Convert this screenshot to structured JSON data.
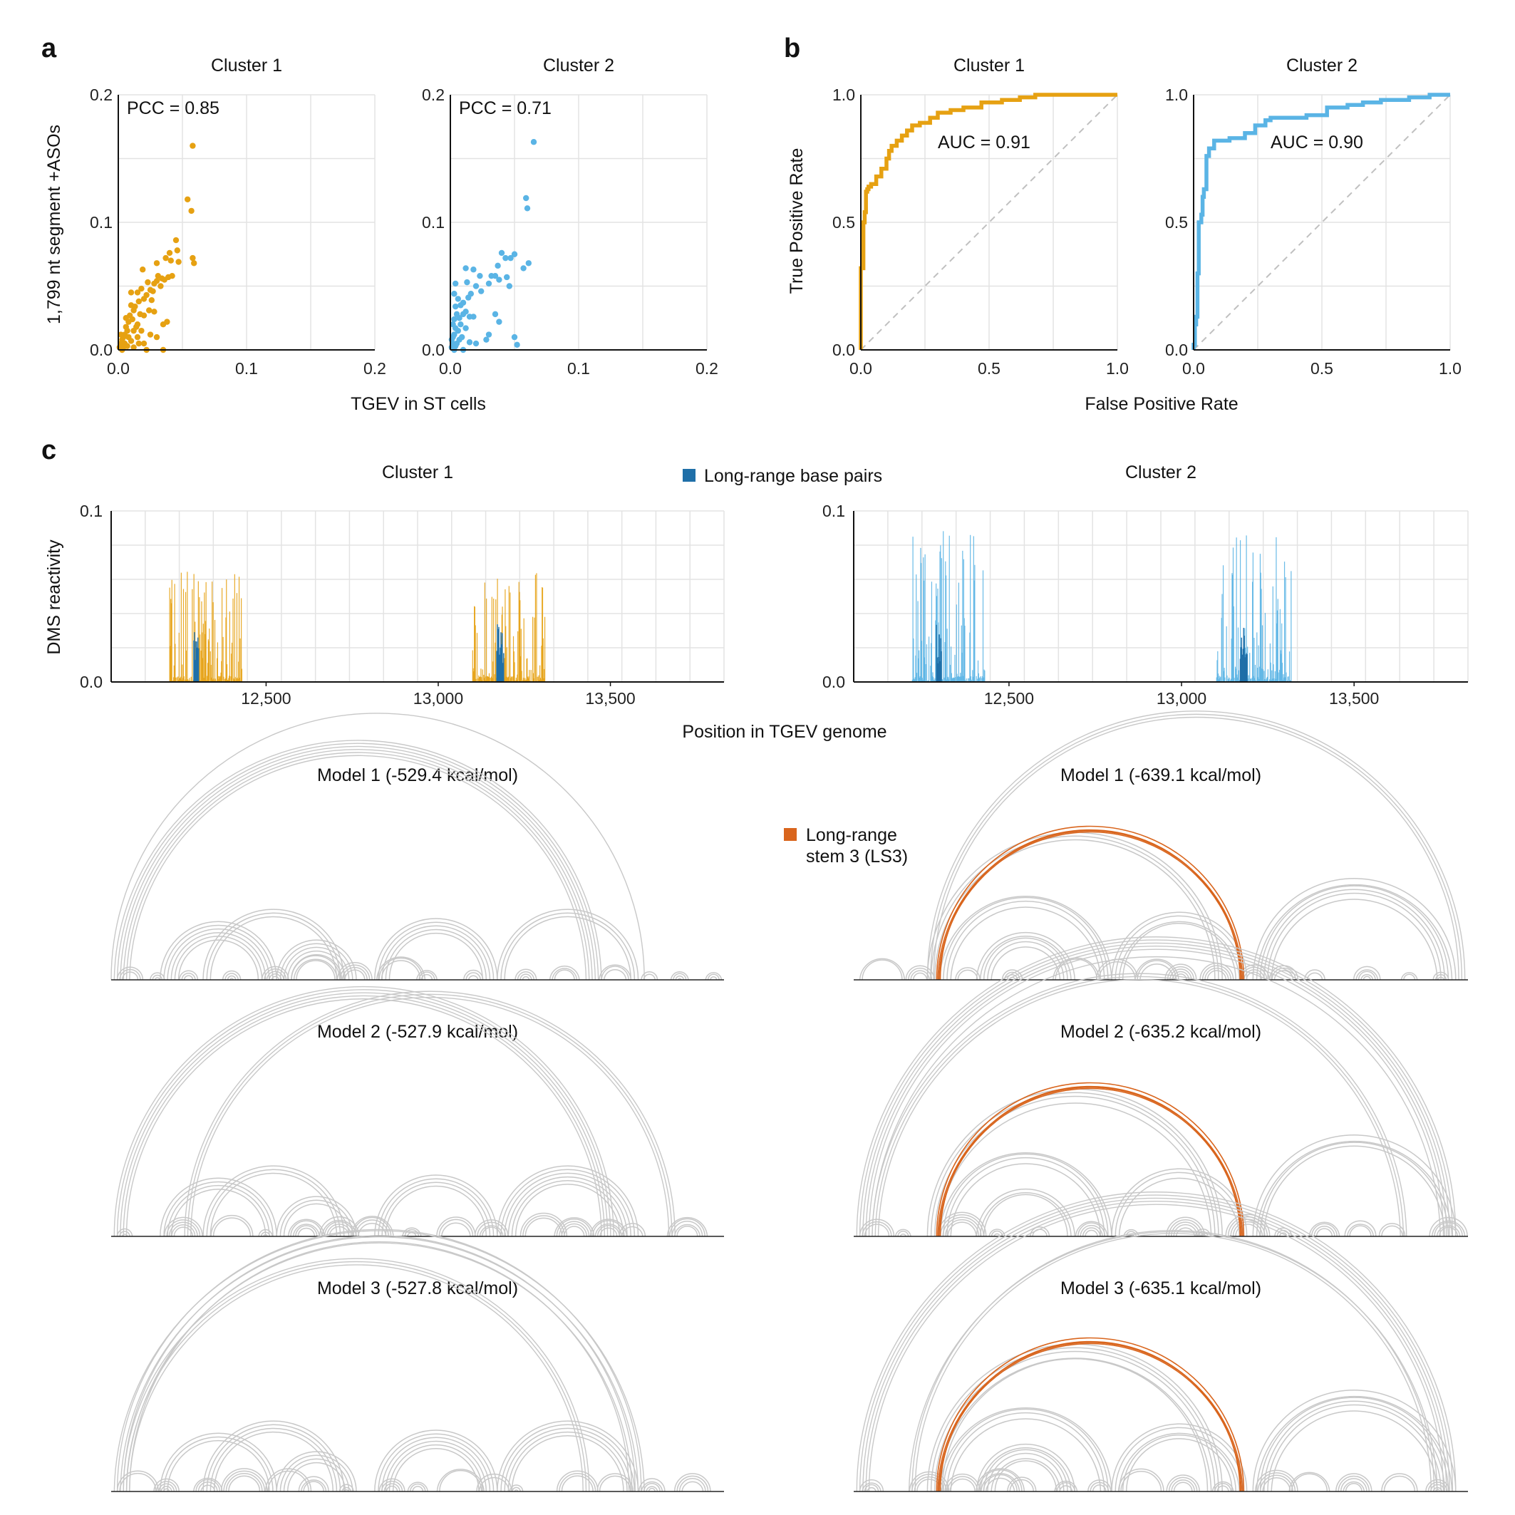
{
  "panels": {
    "a": {
      "label": "a",
      "xlabel": "TGEV in ST cells",
      "ylabel": "1,799 nt segment +ASOs"
    },
    "b": {
      "label": "b",
      "xlabel": "False Positive Rate",
      "ylabel": "True Positive Rate"
    },
    "c": {
      "label": "c",
      "xlabel": "Position in TGEV genome",
      "ylabel": "DMS reactivity",
      "legend_top": "Long-range base pairs",
      "legend_arc": [
        "Long-range",
        "stem 3 (LS3)"
      ]
    }
  },
  "colors": {
    "cluster1": "#e6a112",
    "cluster2": "#5ab4e5",
    "longrange_bp": "#1f6fa8",
    "ls3": "#d9651d",
    "arc_gray": "#c8c8c8",
    "grid": "#e3e3e3",
    "diagonal": "#c0c0c0"
  },
  "chart_data": [
    {
      "id": "scatter-cluster1",
      "type": "scatter",
      "title": "Cluster 1",
      "annotation": "PCC = 0.85",
      "xlim": [
        0.0,
        0.2
      ],
      "ylim": [
        0.0,
        0.2
      ],
      "xticks": [
        "0.0",
        "0.1",
        "0.2"
      ],
      "yticks": [
        "0.0",
        "0.1",
        "0.2"
      ],
      "color": "#e6a112",
      "points": [
        [
          0.058,
          0.16
        ],
        [
          0.054,
          0.118
        ],
        [
          0.057,
          0.109
        ],
        [
          0.058,
          0.072
        ],
        [
          0.059,
          0.068
        ],
        [
          0.045,
          0.086
        ],
        [
          0.046,
          0.078
        ],
        [
          0.047,
          0.069
        ],
        [
          0.04,
          0.076
        ],
        [
          0.041,
          0.07
        ],
        [
          0.037,
          0.072
        ],
        [
          0.042,
          0.058
        ],
        [
          0.039,
          0.057
        ],
        [
          0.036,
          0.055
        ],
        [
          0.034,
          0.056
        ],
        [
          0.031,
          0.058
        ],
        [
          0.03,
          0.054
        ],
        [
          0.033,
          0.05
        ],
        [
          0.028,
          0.052
        ],
        [
          0.027,
          0.046
        ],
        [
          0.03,
          0.068
        ],
        [
          0.023,
          0.053
        ],
        [
          0.025,
          0.047
        ],
        [
          0.019,
          0.063
        ],
        [
          0.022,
          0.043
        ],
        [
          0.018,
          0.048
        ],
        [
          0.02,
          0.04
        ],
        [
          0.016,
          0.038
        ],
        [
          0.026,
          0.039
        ],
        [
          0.015,
          0.045
        ],
        [
          0.035,
          0.02
        ],
        [
          0.038,
          0.022
        ],
        [
          0.028,
          0.03
        ],
        [
          0.024,
          0.031
        ],
        [
          0.02,
          0.027
        ],
        [
          0.017,
          0.028
        ],
        [
          0.013,
          0.034
        ],
        [
          0.012,
          0.031
        ],
        [
          0.01,
          0.035
        ],
        [
          0.009,
          0.027
        ],
        [
          0.011,
          0.024
        ],
        [
          0.008,
          0.022
        ],
        [
          0.015,
          0.02
        ],
        [
          0.014,
          0.018
        ],
        [
          0.006,
          0.018
        ],
        [
          0.007,
          0.015
        ],
        [
          0.005,
          0.012
        ],
        [
          0.004,
          0.01
        ],
        [
          0.003,
          0.008
        ],
        [
          0.002,
          0.005
        ],
        [
          0.001,
          0.002
        ],
        [
          0.005,
          0.005
        ],
        [
          0.008,
          0.01
        ],
        [
          0.012,
          0.015
        ],
        [
          0.01,
          0.007
        ],
        [
          0.015,
          0.01
        ],
        [
          0.003,
          0.0
        ],
        [
          0.007,
          0.003
        ],
        [
          0.012,
          0.002
        ],
        [
          0.02,
          0.005
        ],
        [
          0.022,
          0.0
        ],
        [
          0.035,
          0.0
        ],
        [
          0.025,
          0.012
        ],
        [
          0.018,
          0.015
        ],
        [
          0.004,
          0.002
        ],
        [
          0.002,
          0.012
        ],
        [
          0.006,
          0.025
        ],
        [
          0.01,
          0.045
        ],
        [
          0.016,
          0.005
        ],
        [
          0.03,
          0.01
        ]
      ]
    },
    {
      "id": "scatter-cluster2",
      "type": "scatter",
      "title": "Cluster 2",
      "annotation": "PCC = 0.71",
      "xlim": [
        0.0,
        0.2
      ],
      "ylim": [
        0.0,
        0.2
      ],
      "xticks": [
        "0.0",
        "0.1",
        "0.2"
      ],
      "yticks": [
        "0.0",
        "0.1",
        "0.2"
      ],
      "color": "#5ab4e5",
      "points": [
        [
          0.065,
          0.163
        ],
        [
          0.059,
          0.119
        ],
        [
          0.06,
          0.111
        ],
        [
          0.061,
          0.068
        ],
        [
          0.057,
          0.064
        ],
        [
          0.05,
          0.075
        ],
        [
          0.047,
          0.072
        ],
        [
          0.04,
          0.076
        ],
        [
          0.043,
          0.072
        ],
        [
          0.037,
          0.066
        ],
        [
          0.035,
          0.058
        ],
        [
          0.038,
          0.055
        ],
        [
          0.046,
          0.05
        ],
        [
          0.044,
          0.057
        ],
        [
          0.032,
          0.058
        ],
        [
          0.03,
          0.052
        ],
        [
          0.023,
          0.058
        ],
        [
          0.02,
          0.05
        ],
        [
          0.024,
          0.046
        ],
        [
          0.012,
          0.064
        ],
        [
          0.018,
          0.063
        ],
        [
          0.013,
          0.053
        ],
        [
          0.016,
          0.044
        ],
        [
          0.014,
          0.041
        ],
        [
          0.004,
          0.052
        ],
        [
          0.003,
          0.044
        ],
        [
          0.006,
          0.04
        ],
        [
          0.008,
          0.035
        ],
        [
          0.01,
          0.037
        ],
        [
          0.004,
          0.034
        ],
        [
          0.012,
          0.03
        ],
        [
          0.01,
          0.028
        ],
        [
          0.015,
          0.026
        ],
        [
          0.018,
          0.026
        ],
        [
          0.007,
          0.025
        ],
        [
          0.005,
          0.028
        ],
        [
          0.003,
          0.024
        ],
        [
          0.002,
          0.02
        ],
        [
          0.004,
          0.017
        ],
        [
          0.006,
          0.015
        ],
        [
          0.003,
          0.012
        ],
        [
          0.002,
          0.01
        ],
        [
          0.001,
          0.008
        ],
        [
          0.002,
          0.005
        ],
        [
          0.001,
          0.002
        ],
        [
          0.005,
          0.005
        ],
        [
          0.007,
          0.008
        ],
        [
          0.009,
          0.01
        ],
        [
          0.004,
          0.003
        ],
        [
          0.003,
          0.0
        ],
        [
          0.01,
          0.0
        ],
        [
          0.03,
          0.012
        ],
        [
          0.035,
          0.028
        ],
        [
          0.038,
          0.022
        ],
        [
          0.05,
          0.01
        ],
        [
          0.052,
          0.004
        ],
        [
          0.02,
          0.005
        ],
        [
          0.028,
          0.008
        ],
        [
          0.015,
          0.006
        ],
        [
          0.012,
          0.017
        ],
        [
          0.008,
          0.02
        ]
      ]
    },
    {
      "id": "roc-cluster1",
      "type": "line",
      "title": "Cluster 1",
      "annotation": "AUC = 0.91",
      "xlim": [
        0.0,
        1.0
      ],
      "ylim": [
        0.0,
        1.0
      ],
      "xticks": [
        "0.0",
        "0.5",
        "1.0"
      ],
      "yticks": [
        "0.0",
        "0.5",
        "1.0"
      ],
      "color": "#e6a112",
      "x": [
        0.0,
        0.0,
        0.01,
        0.01,
        0.015,
        0.015,
        0.02,
        0.02,
        0.025,
        0.025,
        0.03,
        0.03,
        0.04,
        0.04,
        0.06,
        0.06,
        0.08,
        0.08,
        0.1,
        0.1,
        0.11,
        0.11,
        0.12,
        0.12,
        0.14,
        0.14,
        0.16,
        0.16,
        0.18,
        0.18,
        0.2,
        0.2,
        0.23,
        0.23,
        0.27,
        0.27,
        0.3,
        0.3,
        0.35,
        0.35,
        0.4,
        0.4,
        0.47,
        0.47,
        0.55,
        0.55,
        0.62,
        0.62,
        0.68,
        0.68,
        0.75,
        1.0
      ],
      "y": [
        0.0,
        0.32,
        0.32,
        0.5,
        0.5,
        0.54,
        0.54,
        0.62,
        0.62,
        0.63,
        0.63,
        0.64,
        0.64,
        0.65,
        0.65,
        0.68,
        0.68,
        0.71,
        0.71,
        0.75,
        0.75,
        0.78,
        0.78,
        0.8,
        0.8,
        0.82,
        0.82,
        0.84,
        0.84,
        0.86,
        0.86,
        0.88,
        0.88,
        0.89,
        0.89,
        0.91,
        0.91,
        0.93,
        0.93,
        0.94,
        0.94,
        0.95,
        0.95,
        0.97,
        0.97,
        0.98,
        0.98,
        0.99,
        0.99,
        1.0,
        1.0,
        1.0
      ]
    },
    {
      "id": "roc-cluster2",
      "type": "line",
      "title": "Cluster 2",
      "annotation": "AUC = 0.90",
      "xlim": [
        0.0,
        1.0
      ],
      "ylim": [
        0.0,
        1.0
      ],
      "xticks": [
        "0.0",
        "0.5",
        "1.0"
      ],
      "yticks": [
        "0.0",
        "0.5",
        "1.0"
      ],
      "color": "#5ab4e5",
      "x": [
        0.0,
        0.0,
        0.005,
        0.005,
        0.01,
        0.01,
        0.015,
        0.015,
        0.02,
        0.02,
        0.03,
        0.03,
        0.035,
        0.035,
        0.04,
        0.04,
        0.05,
        0.05,
        0.06,
        0.06,
        0.08,
        0.08,
        0.14,
        0.14,
        0.2,
        0.2,
        0.24,
        0.24,
        0.28,
        0.28,
        0.3,
        0.3,
        0.44,
        0.44,
        0.52,
        0.52,
        0.6,
        0.6,
        0.66,
        0.66,
        0.73,
        0.73,
        0.84,
        0.84,
        0.92,
        0.92,
        0.97,
        0.97,
        1.0
      ],
      "y": [
        0.0,
        0.02,
        0.02,
        0.1,
        0.1,
        0.13,
        0.13,
        0.3,
        0.3,
        0.5,
        0.5,
        0.53,
        0.53,
        0.6,
        0.6,
        0.63,
        0.63,
        0.76,
        0.76,
        0.79,
        0.79,
        0.82,
        0.82,
        0.83,
        0.83,
        0.85,
        0.85,
        0.88,
        0.88,
        0.9,
        0.9,
        0.91,
        0.91,
        0.92,
        0.92,
        0.95,
        0.95,
        0.96,
        0.96,
        0.97,
        0.97,
        0.98,
        0.98,
        0.99,
        0.99,
        1.0,
        1.0,
        1.0,
        1.0
      ]
    },
    {
      "id": "dms-cluster1",
      "type": "bar",
      "title": "Cluster 1",
      "xlim": [
        12050,
        13830
      ],
      "ylim": [
        0.0,
        0.1
      ],
      "xticks": [
        "12,500",
        "13,000",
        "13,500"
      ],
      "xtick_values": [
        12500,
        13000,
        13500
      ],
      "yticks": [
        "0.0",
        "0.1"
      ],
      "color": "#e6a112",
      "highlight_color": "#1f6fa8",
      "regions": [
        [
          12220,
          12430
        ],
        [
          13100,
          13310
        ]
      ],
      "peak_max": 0.065
    },
    {
      "id": "dms-cluster2",
      "type": "bar",
      "title": "Cluster 2",
      "xlim": [
        12050,
        13830
      ],
      "ylim": [
        0.0,
        0.1
      ],
      "xticks": [
        "12,500",
        "13,000",
        "13,500"
      ],
      "xtick_values": [
        12500,
        13000,
        13500
      ],
      "yticks": [
        "0.0",
        "0.1"
      ],
      "color": "#5ab4e5",
      "highlight_color": "#1f6fa8",
      "regions": [
        [
          12220,
          12430
        ],
        [
          13100,
          13320
        ]
      ],
      "peak_max": 0.09
    }
  ],
  "arc_models": {
    "cluster1": [
      {
        "title": "Model 1 (-529.4 kcal/mol)",
        "ls3": false
      },
      {
        "title": "Model 2 (-527.9 kcal/mol)",
        "ls3": false
      },
      {
        "title": "Model 3 (-527.8 kcal/mol)",
        "ls3": false
      }
    ],
    "cluster2": [
      {
        "title": "Model 1 (-639.1 kcal/mol)",
        "ls3": true
      },
      {
        "title": "Model 2 (-635.2 kcal/mol)",
        "ls3": true
      },
      {
        "title": "Model 3 (-635.1 kcal/mol)",
        "ls3": true
      }
    ]
  }
}
